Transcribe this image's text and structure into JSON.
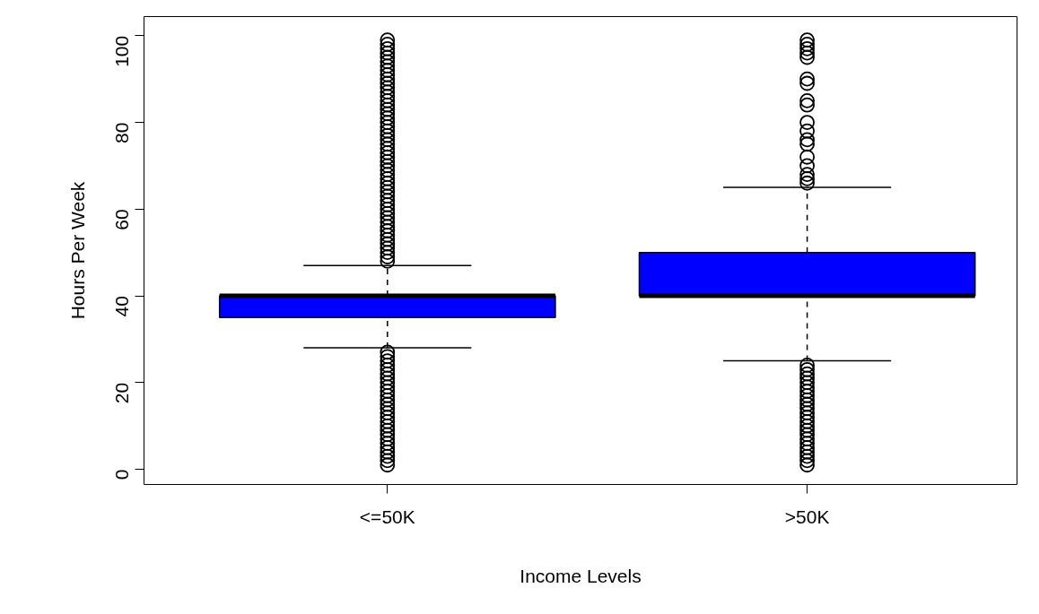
{
  "chart_data": {
    "type": "box",
    "xlabel": "Income Levels",
    "ylabel": "Hours Per Week",
    "categories": [
      "<=50K",
      ">50K"
    ],
    "series": [
      {
        "color": "#0000ff",
        "boxes": [
          {
            "low": 28,
            "q1": 35,
            "median": 40,
            "q3": 40,
            "high": 47,
            "outliers": [
              1,
              2,
              3,
              4,
              5,
              6,
              7,
              8,
              9,
              10,
              11,
              12,
              13,
              14,
              15,
              16,
              17,
              18,
              19,
              20,
              21,
              22,
              23,
              24,
              25,
              26,
              27,
              48,
              49,
              50,
              51,
              52,
              53,
              54,
              55,
              56,
              57,
              58,
              59,
              60,
              61,
              62,
              63,
              64,
              65,
              66,
              67,
              68,
              69,
              70,
              71,
              72,
              73,
              74,
              75,
              76,
              77,
              78,
              79,
              80,
              81,
              82,
              83,
              84,
              85,
              86,
              87,
              88,
              89,
              90,
              91,
              92,
              93,
              94,
              95,
              96,
              97,
              98,
              99
            ]
          },
          {
            "low": 25,
            "q1": 40,
            "median": 40,
            "q3": 50,
            "high": 65,
            "outliers": [
              1,
              2,
              3,
              4,
              5,
              6,
              7,
              8,
              9,
              10,
              11,
              12,
              13,
              14,
              15,
              16,
              17,
              18,
              19,
              20,
              21,
              22,
              23,
              24,
              66,
              67,
              68,
              70,
              72,
              75,
              76,
              78,
              80,
              84,
              85,
              89,
              90,
              95,
              96,
              97,
              98,
              99
            ]
          }
        ]
      }
    ],
    "ylim": [
      -3.5,
      104.4
    ],
    "yticks": [
      0,
      20,
      40,
      60,
      80,
      100
    ],
    "marker": "circle"
  }
}
